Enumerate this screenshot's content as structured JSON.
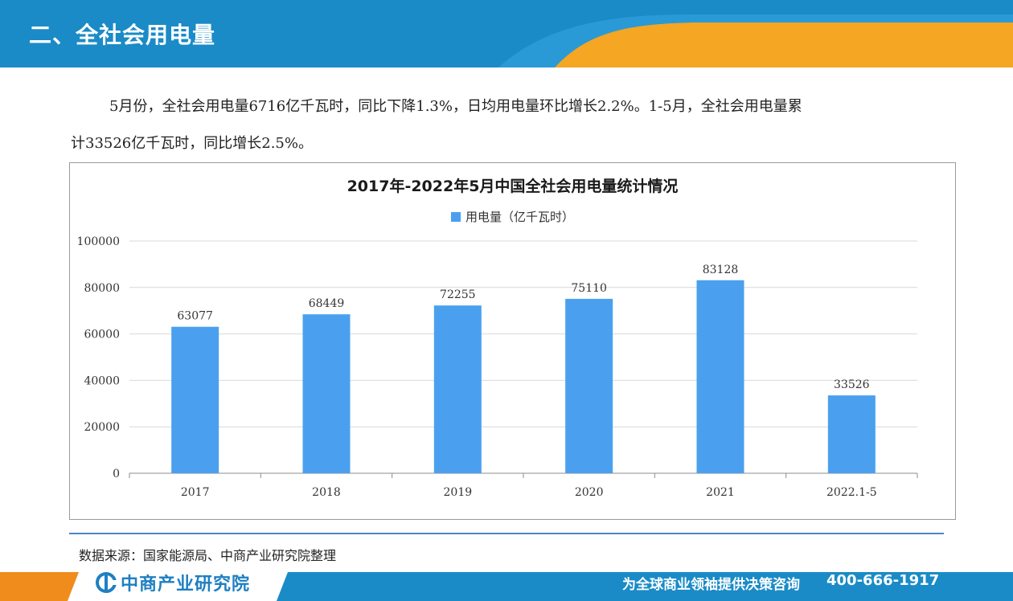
{
  "header": {
    "title": "二、全社会用电量"
  },
  "body": {
    "line1": "5月份，全社会用电量6716亿千瓦时，同比下降1.3%，日均用电量环比增长2.2%。1-5月，全社会用电量累",
    "line2": "计33526亿千瓦时，同比增长2.5%。"
  },
  "chart_data": {
    "type": "bar",
    "title": "2017年-2022年5月中国全社会用电量统计情况",
    "categories": [
      "2017",
      "2018",
      "2019",
      "2020",
      "2021",
      "2022.1-5"
    ],
    "series": [
      {
        "name": "用电量（亿千瓦时）",
        "values": [
          63077,
          68449,
          72255,
          75110,
          83128,
          33526
        ]
      }
    ],
    "ylim": [
      0,
      100000
    ],
    "yticks": [
      0,
      20000,
      40000,
      60000,
      80000,
      100000
    ],
    "grid": true,
    "legend": "top-center",
    "color": "#4aa0ef"
  },
  "source": "数据来源：国家能源局、中商产业研究院整理",
  "footer": {
    "brand": "中商产业研究院",
    "slogan": "为全球商业领袖提供决策咨询",
    "phone": "400-666-1917"
  },
  "colors": {
    "header_blue": "#1a8bc7",
    "header_orange": "#f5a623",
    "footer_blue": "#1a8bc7",
    "footer_orange": "#f08c1c"
  }
}
